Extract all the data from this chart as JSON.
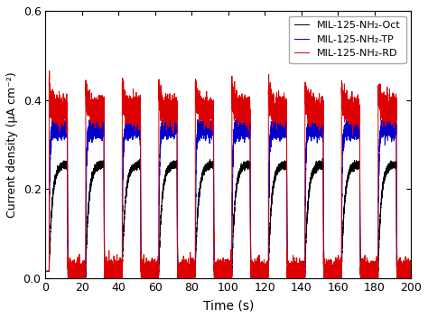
{
  "xlabel": "Time (s)",
  "ylabel": "Current density (μA cm⁻²)",
  "xlim": [
    0,
    200
  ],
  "ylim": [
    0,
    0.6
  ],
  "xticks": [
    0,
    20,
    40,
    60,
    80,
    100,
    120,
    140,
    160,
    180,
    200
  ],
  "yticks": [
    0.0,
    0.2,
    0.4,
    0.6
  ],
  "colors": {
    "black": "#000000",
    "blue": "#0000cc",
    "red": "#dd0000"
  },
  "legend": [
    "MIL-125-NH₂-Oct",
    "MIL-125-NH₂-TP",
    "MIL-125-NH₂-RD"
  ],
  "cycle_on_duration": 10,
  "cycle_off_duration": 10,
  "first_on": 2,
  "n_cycles": 10,
  "baseline": 0.015,
  "on_level_black": 0.255,
  "on_level_blue": 0.335,
  "on_level_red": 0.375,
  "spike_red": 0.42,
  "spike_blue": 0.005,
  "noise_black": 0.004,
  "noise_blue": 0.01,
  "noise_red": 0.015,
  "background_color": "#ffffff"
}
